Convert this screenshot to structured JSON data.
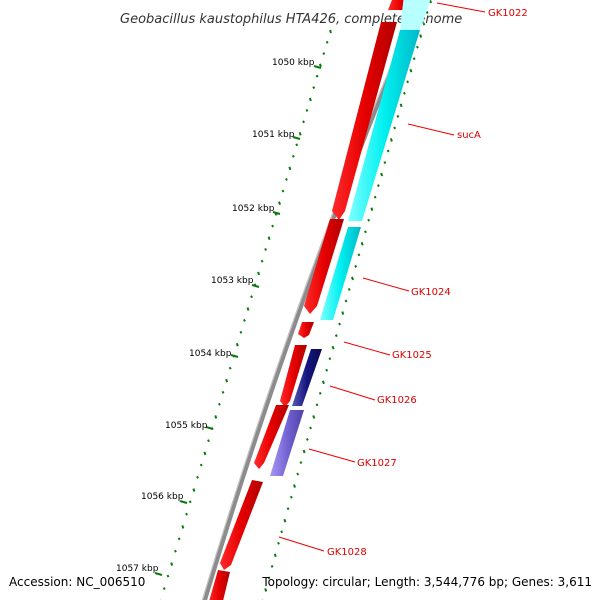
{
  "title": "Geobacillus kaustophilus HTA426, complete genome",
  "footer": {
    "accession": "Accession: NC_006510",
    "stats": "Topology: circular; Length: 3,544,776 bp; Genes: 3,611"
  },
  "kbp_ticks": [
    "1050 kbp",
    "1051 kbp",
    "1052 kbp",
    "1053 kbp",
    "1054 kbp",
    "1055 kbp",
    "1056 kbp",
    "1057 kbp"
  ],
  "gene_labels": [
    "GK1022",
    "sucA",
    "GK1024",
    "GK1025",
    "GK1026",
    "GK1027",
    "GK1028"
  ],
  "colors": {
    "backbone": "#8c8c8c",
    "forward_cds": "#ff0000",
    "feature_cyan": "#00ffff",
    "feature_navy": "#1a1a8c",
    "feature_violet": "#7a6ad8",
    "gc_ticks": "#0a7a0a",
    "label_lines": "#ee0000"
  }
}
